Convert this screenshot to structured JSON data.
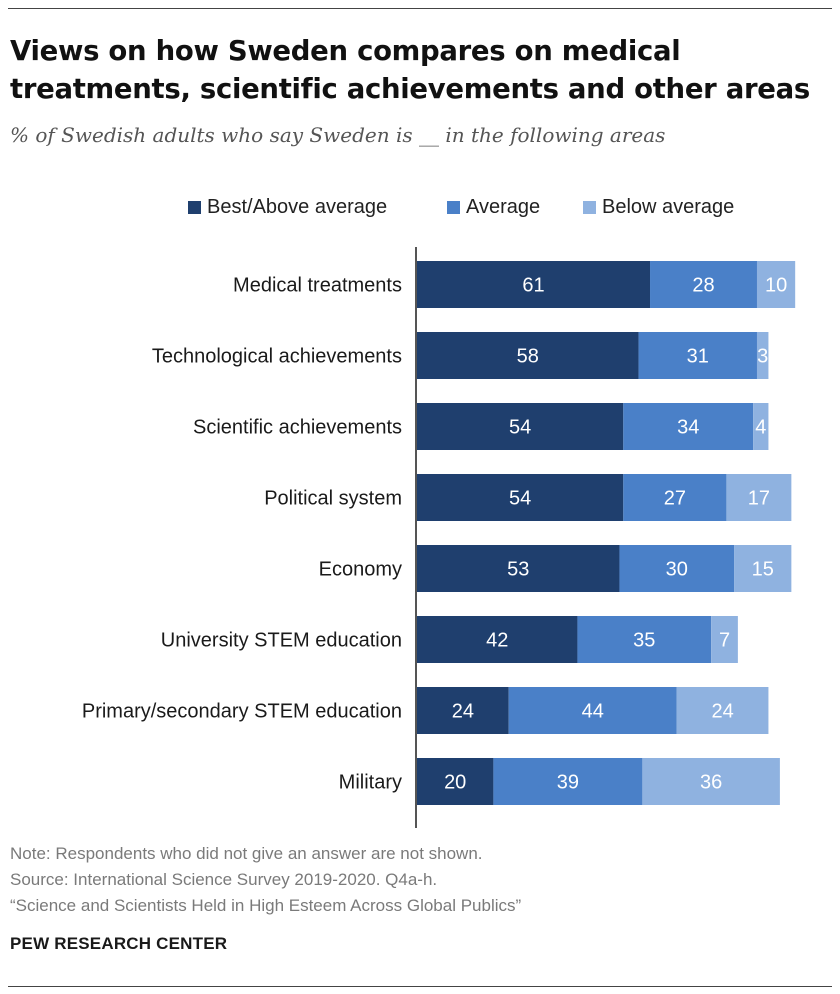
{
  "header": {
    "title": "Views on how Sweden compares on medical treatments, scientific achievements and other areas",
    "subtitle": "% of Swedish adults who say Sweden is __ in the following areas"
  },
  "colors": {
    "best": "#1f3f6e",
    "average": "#4a80c8",
    "below": "#8fb2e0"
  },
  "chart_data": {
    "type": "bar",
    "orientation": "horizontal",
    "stacked": true,
    "categories": [
      "Medical treatments",
      "Technological achievements",
      "Scientific achievements",
      "Political system",
      "Economy",
      "University STEM education",
      "Primary/secondary STEM education",
      "Military"
    ],
    "series": [
      {
        "name": "Best/Above average",
        "values": [
          61,
          58,
          54,
          54,
          53,
          42,
          24,
          20
        ]
      },
      {
        "name": "Average",
        "values": [
          28,
          31,
          34,
          27,
          30,
          35,
          44,
          39
        ]
      },
      {
        "name": "Below average",
        "values": [
          10,
          3,
          4,
          17,
          15,
          7,
          24,
          36
        ]
      }
    ],
    "xlim": [
      0,
      100
    ],
    "legend_position": "top",
    "grid": false
  },
  "footer": {
    "note": "Note: Respondents who did not give an answer are not shown.",
    "source": "Source: International Science Survey 2019-2020. Q4a-h.",
    "report": "“Science and Scientists Held in High Esteem Across Global Publics”",
    "brand": "PEW RESEARCH CENTER"
  }
}
